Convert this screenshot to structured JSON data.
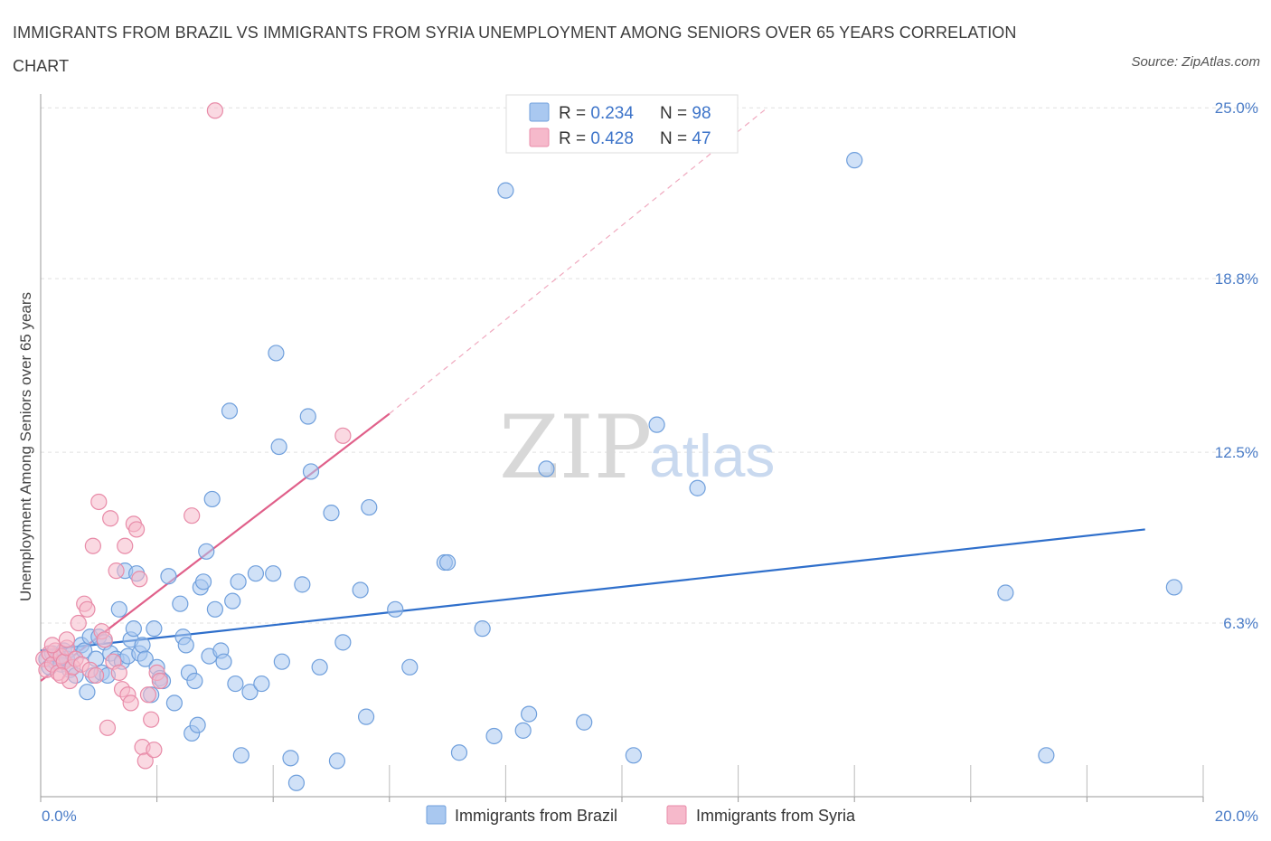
{
  "title": "IMMIGRANTS FROM BRAZIL VS IMMIGRANTS FROM SYRIA UNEMPLOYMENT AMONG SENIORS OVER 65 YEARS CORRELATION CHART",
  "source": "Source: ZipAtlas.com",
  "watermark": {
    "zip": "ZIP",
    "atlas": "atlas"
  },
  "colors": {
    "brazil_fill": "#a9c8f0",
    "brazil_stroke": "#6f9fdc",
    "brazil_line": "#2f6fcb",
    "syria_fill": "#f6b9cb",
    "syria_stroke": "#e88ba8",
    "syria_line": "#e0608a",
    "grid": "#e0e0e0",
    "axis_text": "#4a7cc7"
  },
  "legend": {
    "rows": [
      {
        "r_label": "R = ",
        "r_value": "0.234",
        "n_label": "N = ",
        "n_value": "98"
      },
      {
        "r_label": "R = ",
        "r_value": "0.428",
        "n_label": "N = ",
        "n_value": "47"
      }
    ]
  },
  "chart_data": {
    "type": "scatter",
    "title": "IMMIGRANTS FROM BRAZIL VS IMMIGRANTS FROM SYRIA UNEMPLOYMENT AMONG SENIORS OVER 65 YEARS CORRELATION CHART",
    "xlabel": "",
    "ylabel": "Unemployment Among Seniors over 65 years",
    "xlim": [
      0,
      20
    ],
    "ylim": [
      0,
      25.5
    ],
    "x_tick_labels": [
      "0.0%",
      "20.0%"
    ],
    "y_ticks": [
      6.3,
      12.5,
      18.8,
      25.0
    ],
    "y_tick_labels": [
      "6.3%",
      "12.5%",
      "18.8%",
      "25.0%"
    ],
    "grid": true,
    "legend_position": "top-center",
    "series": [
      {
        "name": "Immigrants from Brazil",
        "R": 0.234,
        "N": 98,
        "trend": {
          "x": [
            0,
            19.0
          ],
          "y": [
            5.3,
            9.7
          ],
          "dashed_extension": false
        },
        "points": [
          [
            0.1,
            5.0
          ],
          [
            0.15,
            4.7
          ],
          [
            0.2,
            5.2
          ],
          [
            0.25,
            4.9
          ],
          [
            0.3,
            5.1
          ],
          [
            0.35,
            4.8
          ],
          [
            0.4,
            5.3
          ],
          [
            0.45,
            5.0
          ],
          [
            0.5,
            4.6
          ],
          [
            0.55,
            5.2
          ],
          [
            0.6,
            4.4
          ],
          [
            0.7,
            5.5
          ],
          [
            0.75,
            5.3
          ],
          [
            0.8,
            3.8
          ],
          [
            0.85,
            5.8
          ],
          [
            0.9,
            4.4
          ],
          [
            0.95,
            5.0
          ],
          [
            1.0,
            5.8
          ],
          [
            1.05,
            4.5
          ],
          [
            1.1,
            5.6
          ],
          [
            1.15,
            4.4
          ],
          [
            1.2,
            5.2
          ],
          [
            1.3,
            5.0
          ],
          [
            1.35,
            6.8
          ],
          [
            1.4,
            4.9
          ],
          [
            1.45,
            8.2
          ],
          [
            1.5,
            5.1
          ],
          [
            1.55,
            5.7
          ],
          [
            1.6,
            6.1
          ],
          [
            1.65,
            8.1
          ],
          [
            1.7,
            5.2
          ],
          [
            1.75,
            5.5
          ],
          [
            1.8,
            5.0
          ],
          [
            1.9,
            3.7
          ],
          [
            1.95,
            6.1
          ],
          [
            2.0,
            4.7
          ],
          [
            2.05,
            4.3
          ],
          [
            2.1,
            4.2
          ],
          [
            2.2,
            8.0
          ],
          [
            2.3,
            3.4
          ],
          [
            2.4,
            7.0
          ],
          [
            2.45,
            5.8
          ],
          [
            2.5,
            5.5
          ],
          [
            2.55,
            4.5
          ],
          [
            2.6,
            2.3
          ],
          [
            2.65,
            4.2
          ],
          [
            2.7,
            2.6
          ],
          [
            2.75,
            7.6
          ],
          [
            2.8,
            7.8
          ],
          [
            2.85,
            8.9
          ],
          [
            2.9,
            5.1
          ],
          [
            2.95,
            10.8
          ],
          [
            3.0,
            6.8
          ],
          [
            3.1,
            5.3
          ],
          [
            3.15,
            4.9
          ],
          [
            3.25,
            14.0
          ],
          [
            3.3,
            7.1
          ],
          [
            3.35,
            4.1
          ],
          [
            3.4,
            7.8
          ],
          [
            3.45,
            1.5
          ],
          [
            3.6,
            3.8
          ],
          [
            3.7,
            8.1
          ],
          [
            3.8,
            4.1
          ],
          [
            4.0,
            8.1
          ],
          [
            4.05,
            16.1
          ],
          [
            4.1,
            12.7
          ],
          [
            4.15,
            4.9
          ],
          [
            4.3,
            1.4
          ],
          [
            4.4,
            0.5
          ],
          [
            4.5,
            7.7
          ],
          [
            4.6,
            13.8
          ],
          [
            4.65,
            11.8
          ],
          [
            4.8,
            4.7
          ],
          [
            5.0,
            10.3
          ],
          [
            5.1,
            1.3
          ],
          [
            5.2,
            5.6
          ],
          [
            5.5,
            7.5
          ],
          [
            5.6,
            2.9
          ],
          [
            5.65,
            10.5
          ],
          [
            6.1,
            6.8
          ],
          [
            6.35,
            4.7
          ],
          [
            6.95,
            8.5
          ],
          [
            7.0,
            8.5
          ],
          [
            7.2,
            1.6
          ],
          [
            7.6,
            6.1
          ],
          [
            7.8,
            2.2
          ],
          [
            8.0,
            22.0
          ],
          [
            8.3,
            2.4
          ],
          [
            8.4,
            3.0
          ],
          [
            8.7,
            11.9
          ],
          [
            9.35,
            2.7
          ],
          [
            10.2,
            1.5
          ],
          [
            10.6,
            13.5
          ],
          [
            11.3,
            11.2
          ],
          [
            14.0,
            23.1
          ],
          [
            16.6,
            7.4
          ],
          [
            17.3,
            1.5
          ],
          [
            19.5,
            7.6
          ]
        ]
      },
      {
        "name": "Immigrants from Syria",
        "R": 0.428,
        "N": 47,
        "trend": {
          "x": [
            0,
            6.0
          ],
          "y": [
            4.2,
            13.9
          ],
          "dashed_extension": true,
          "extension_to": [
            12.5,
            25.0
          ]
        },
        "points": [
          [
            0.05,
            5.0
          ],
          [
            0.1,
            4.6
          ],
          [
            0.15,
            5.2
          ],
          [
            0.2,
            4.8
          ],
          [
            0.25,
            5.3
          ],
          [
            0.3,
            4.5
          ],
          [
            0.35,
            5.1
          ],
          [
            0.4,
            4.9
          ],
          [
            0.45,
            5.4
          ],
          [
            0.5,
            4.2
          ],
          [
            0.55,
            4.7
          ],
          [
            0.6,
            5.0
          ],
          [
            0.65,
            6.3
          ],
          [
            0.7,
            4.8
          ],
          [
            0.75,
            7.0
          ],
          [
            0.8,
            6.8
          ],
          [
            0.85,
            4.6
          ],
          [
            0.9,
            9.1
          ],
          [
            0.95,
            4.4
          ],
          [
            1.0,
            10.7
          ],
          [
            1.05,
            6.0
          ],
          [
            1.1,
            5.7
          ],
          [
            1.15,
            2.5
          ],
          [
            1.2,
            10.1
          ],
          [
            1.25,
            4.9
          ],
          [
            1.3,
            8.2
          ],
          [
            1.35,
            4.5
          ],
          [
            1.4,
            3.9
          ],
          [
            1.45,
            9.1
          ],
          [
            1.5,
            3.7
          ],
          [
            1.55,
            3.4
          ],
          [
            1.6,
            9.9
          ],
          [
            1.65,
            9.7
          ],
          [
            1.7,
            7.9
          ],
          [
            1.75,
            1.8
          ],
          [
            1.8,
            1.3
          ],
          [
            1.85,
            3.7
          ],
          [
            1.9,
            2.8
          ],
          [
            1.95,
            1.7
          ],
          [
            2.0,
            4.5
          ],
          [
            2.05,
            4.2
          ],
          [
            2.6,
            10.2
          ],
          [
            3.0,
            24.9
          ],
          [
            5.2,
            13.1
          ],
          [
            0.45,
            5.7
          ],
          [
            0.2,
            5.5
          ],
          [
            0.35,
            4.4
          ]
        ]
      }
    ]
  }
}
